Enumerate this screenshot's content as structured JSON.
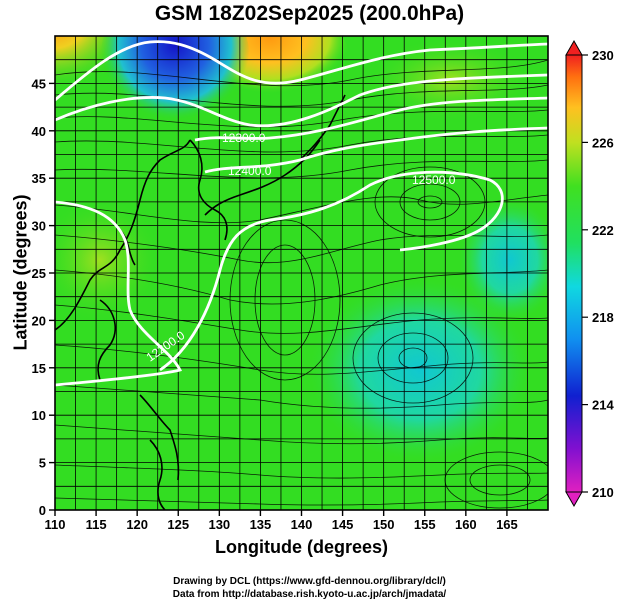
{
  "title": "GSM 18Z02Sep2025 (200.0hPa)",
  "xlabel": "Longitude (degrees)",
  "ylabel": "Latitude  (degrees)",
  "x_ticks": [
    "110",
    "115",
    "120",
    "125",
    "130",
    "135",
    "140",
    "145",
    "150",
    "155",
    "160",
    "165"
  ],
  "y_ticks": [
    "0",
    "5",
    "10",
    "15",
    "20",
    "25",
    "30",
    "35",
    "40",
    "45"
  ],
  "colorbar_ticks": [
    "210",
    "214",
    "218",
    "222",
    "226",
    "230"
  ],
  "contour_labels": [
    "12300.0",
    "12400.0",
    "12500.0",
    "12200.0"
  ],
  "credits": {
    "line1": "Drawing by DCL (https://www.gfd-dennou.org/library/dcl/)",
    "line2": "Data from http://database.rish.kyoto-u.ac.jp/arch/jmadata/"
  },
  "colors": {
    "field_base": "#33dd22",
    "cold_core": "#1a1ad0",
    "warm": "#ffb020",
    "cyan": "#22d8c0",
    "contour": "#ffffff"
  }
}
